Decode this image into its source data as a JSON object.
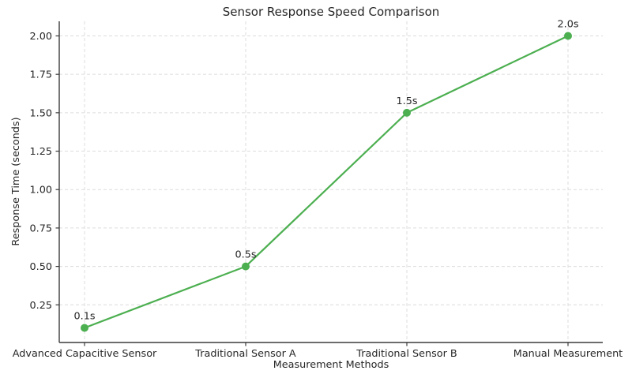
{
  "chart_data": {
    "type": "line",
    "title": "Sensor Response Speed Comparison",
    "xlabel": "Measurement Methods",
    "ylabel": "Response Time (seconds)",
    "categories": [
      "Advanced Capacitive Sensor",
      "Traditional Sensor A",
      "Traditional Sensor B",
      "Manual Measurement"
    ],
    "values": [
      0.1,
      0.5,
      1.5,
      2.0
    ],
    "point_labels": [
      "0.1s",
      "0.5s",
      "1.5s",
      "2.0s"
    ],
    "yticks": [
      0.25,
      0.5,
      0.75,
      1.0,
      1.25,
      1.5,
      1.75,
      2.0
    ],
    "ytick_labels": [
      "0.25",
      "0.50",
      "0.75",
      "1.00",
      "1.25",
      "1.50",
      "1.75",
      "2.00"
    ],
    "ylim": [
      0.005,
      2.095
    ],
    "grid": true,
    "grid_style": "dashed",
    "legend": "none",
    "line_color": "#4caf50",
    "marker_color": "#4caf50",
    "grid_color": "#dcdcdc",
    "spine_color": "#3b3b3b",
    "text_color": "#262626",
    "background_color": "#ffffff"
  }
}
